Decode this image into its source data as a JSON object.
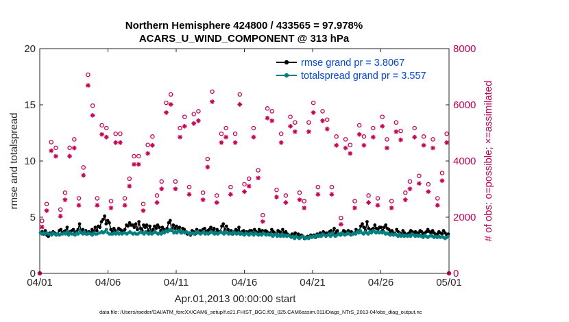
{
  "chart_data": {
    "type": "line",
    "title_line1": "Northern Hemisphere 424800 / 433565 = 97.978%",
    "title_line2": "ACARS_U_WIND_COMPONENT @ 313 hPa",
    "xlabel": "Apr.01,2013 00:00:00 start",
    "ylabel_left": "rmse and totalspread",
    "ylabel_right": "# of obs: o=possible; ×=assimilated",
    "x_tick_labels": [
      "04/01",
      "04/06",
      "04/11",
      "04/16",
      "04/21",
      "04/26",
      "05/01"
    ],
    "x_tick_days": [
      0,
      5,
      10,
      15,
      20,
      25,
      30
    ],
    "xlim_days": [
      0,
      30
    ],
    "ylim_left": [
      0,
      20
    ],
    "yticks_left": [
      0,
      5,
      10,
      15,
      20
    ],
    "ylim_right": [
      0,
      8000
    ],
    "yticks_right": [
      0,
      2000,
      4000,
      6000,
      8000
    ],
    "footnote": "data file: /Users/raeder/DAI/ATM_forcXX/CAM6_setup/f.e21.FHIST_BGC.f09_025.CAM6assim.011/Diags_NTrS_2013-04/obs_diag_output.nc",
    "colors": {
      "rmse": "#000000",
      "totalspread": "#008080",
      "obs": "#cc0052",
      "legend_text": "#0044ee"
    },
    "series": [
      {
        "name": "rmse grand pr = 3.8067",
        "values": [
          3.6,
          3.7,
          3.5,
          3.8,
          3.4,
          3.3,
          3.6,
          3.5,
          3.7,
          3.6,
          3.5,
          3.5,
          3.8,
          3.9,
          3.6,
          3.7,
          3.8,
          4.1,
          3.5,
          3.7,
          3.8,
          3.9,
          3.6,
          3.7,
          3.9,
          4.4,
          3.7,
          3.9,
          3.6,
          3.8,
          3.5,
          3.7,
          3.6,
          3.9,
          3.7,
          4.1,
          3.8,
          4.2,
          4.1,
          4.6,
          4.8,
          5.1,
          4.4,
          4.7,
          4.5,
          3.9,
          3.7,
          4.0,
          3.8,
          3.7,
          4.0,
          3.9,
          3.8,
          3.7,
          3.9,
          4.3,
          4.2,
          4.5,
          4.3,
          4.3,
          4.1,
          4.4,
          3.9,
          4.6,
          4.0,
          3.8,
          4.3,
          4.1,
          4.3,
          3.8,
          4.2,
          3.6,
          3.9,
          4.2,
          4.0,
          4.3,
          4.1,
          3.8,
          4.1,
          3.9,
          3.8,
          4.0,
          4.5,
          4.7,
          3.8,
          4.3,
          4.0,
          4.2,
          3.9,
          4.1,
          3.6,
          4.0,
          3.9,
          3.7,
          3.5,
          3.6,
          3.4,
          3.8,
          3.7,
          3.5,
          3.9,
          3.6,
          3.8,
          3.7,
          3.9,
          4.0,
          3.7,
          3.8,
          3.9,
          4.1,
          3.8,
          4.0,
          3.6,
          3.9,
          3.7,
          3.7,
          4.2,
          4.4,
          3.8,
          4.2,
          3.9,
          3.6,
          3.8,
          3.5,
          3.7,
          3.9,
          3.8,
          4.1,
          3.5,
          3.7,
          3.8,
          3.6,
          3.7,
          3.6,
          3.8,
          3.8,
          3.5,
          3.9,
          3.7,
          3.6,
          3.9,
          3.7,
          3.8,
          3.6,
          3.8,
          3.7,
          3.5,
          3.6,
          3.9,
          3.7,
          3.6,
          3.5,
          3.8,
          3.7,
          3.6,
          3.9,
          3.6,
          3.7,
          3.5,
          3.4,
          3.3,
          3.5,
          3.4,
          3.6,
          3.3,
          3.5,
          3.2,
          3.4,
          3.3,
          3.1,
          3.2,
          3.3,
          3.2,
          3.4,
          3.3,
          3.4,
          3.2,
          3.5,
          3.3,
          3.6,
          3.4,
          3.7,
          3.5,
          3.6,
          3.4,
          3.7,
          3.8,
          3.5,
          4.0,
          3.6,
          3.8,
          3.5,
          3.4,
          3.6,
          3.8,
          3.7,
          3.5,
          3.8,
          3.6,
          3.7,
          3.5,
          3.6,
          3.9,
          3.7,
          3.8,
          4.2,
          4.4,
          4.1,
          3.8,
          4.6,
          4.0,
          3.7,
          3.9,
          4.0,
          4.3,
          4.0,
          3.9,
          4.1,
          4.1,
          3.8,
          4.1,
          4.3,
          4.0,
          3.9,
          3.7,
          3.8,
          3.6,
          3.5,
          3.9,
          3.7,
          3.6,
          3.5,
          3.8,
          3.6,
          3.4,
          3.5,
          3.6,
          3.8,
          3.7,
          3.5,
          3.7,
          3.6,
          3.6,
          3.8,
          3.7,
          3.5,
          3.6,
          3.7,
          3.9,
          3.7,
          3.6,
          3.8,
          3.6,
          3.4,
          3.5,
          3.7,
          3.6,
          3.5,
          3.8,
          3.6,
          3.4,
          3.5
        ]
      },
      {
        "name": "totalspread grand pr = 3.557",
        "values": [
          3.6,
          3.5,
          3.6,
          3.5,
          3.6,
          3.5,
          3.5,
          3.4,
          3.6,
          3.5,
          3.4,
          3.5,
          3.4,
          3.5,
          3.5,
          3.6,
          3.5,
          3.7,
          3.4,
          3.6,
          3.5,
          3.5,
          3.4,
          3.6,
          3.5,
          3.8,
          3.6,
          3.5,
          3.7,
          3.5,
          3.5,
          3.6,
          3.5,
          3.4,
          3.6,
          3.5,
          3.5,
          3.6,
          3.6,
          3.7,
          3.6,
          3.7,
          3.9,
          3.6,
          3.5,
          3.5,
          3.5,
          3.6,
          3.5,
          3.7,
          3.5,
          3.6,
          3.5,
          3.6,
          3.6,
          3.5,
          3.6,
          3.7,
          3.6,
          3.5,
          3.6,
          3.5,
          3.5,
          3.6,
          3.7,
          3.6,
          3.5,
          3.7,
          3.6,
          3.5,
          3.6,
          3.5,
          3.6,
          3.7,
          3.6,
          3.5,
          3.6,
          3.5,
          3.7,
          3.6,
          3.8,
          3.7,
          3.8,
          3.9,
          3.8,
          3.6,
          3.7,
          3.6,
          3.8,
          3.7,
          3.6,
          3.7,
          3.6,
          3.7,
          3.6,
          3.5,
          3.5,
          3.6,
          3.5,
          3.6,
          3.7,
          3.6,
          3.5,
          3.6,
          3.7,
          3.5,
          3.6,
          3.5,
          3.6,
          3.7,
          3.6,
          3.5,
          3.6,
          3.5,
          3.6,
          3.7,
          3.6,
          3.5,
          3.7,
          3.6,
          3.5,
          3.6,
          3.5,
          3.7,
          3.6,
          3.5,
          3.6,
          3.5,
          3.6,
          3.5,
          3.4,
          3.6,
          3.5,
          3.4,
          3.6,
          3.5,
          3.4,
          3.6,
          3.5,
          3.4,
          3.5,
          3.4,
          3.6,
          3.5,
          3.4,
          3.5,
          3.4,
          3.5,
          3.3,
          3.4,
          3.5,
          3.3,
          3.4,
          3.3,
          3.5,
          3.3,
          3.4,
          3.3,
          3.4,
          3.3,
          3.2,
          3.3,
          3.1,
          3.3,
          3.2,
          3.1,
          3.2,
          3.3,
          3.2,
          3.1,
          3.2,
          3.1,
          3.3,
          3.2,
          3.3,
          3.2,
          3.4,
          3.3,
          3.4,
          3.3,
          3.5,
          3.4,
          3.3,
          3.4,
          3.5,
          3.3,
          3.6,
          3.4,
          3.3,
          3.4,
          3.5,
          3.4,
          3.6,
          3.5,
          3.4,
          3.5,
          3.6,
          3.5,
          3.4,
          3.5,
          3.6,
          3.5,
          3.7,
          3.6,
          3.8,
          3.6,
          3.5,
          3.7,
          3.6,
          3.5,
          3.7,
          3.6,
          3.8,
          3.7,
          3.6,
          3.7,
          3.6,
          3.7,
          3.6,
          3.7,
          3.5,
          3.6,
          3.5,
          3.4,
          3.5,
          3.4,
          3.5,
          3.4,
          3.3,
          3.5,
          3.3,
          3.4,
          3.3,
          3.4,
          3.3,
          3.4,
          3.3,
          3.5,
          3.4,
          3.3,
          3.4,
          3.3,
          3.4,
          3.3,
          3.2,
          3.4,
          3.3,
          3.2,
          3.3,
          3.4,
          3.3,
          3.2,
          3.3,
          3.2,
          3.3,
          3.2,
          3.3,
          3.2,
          3.1,
          3.2,
          3.3
        ]
      }
    ],
    "obs_possible": [
      1700,
      2300,
      4500,
      4300,
      2100,
      2700,
      4300,
      4600,
      2500,
      3600,
      6900,
      5800,
      2500,
      5100,
      5000,
      2400,
      4800,
      4800,
      2500,
      3200,
      4000,
      4000,
      2300,
      4400,
      4700,
      2600,
      3100,
      5900,
      6200,
      3100,
      5000,
      5400,
      2900,
      5500,
      5600,
      2700,
      3900,
      6300,
      2600,
      4800,
      5000,
      2900,
      4800,
      6200,
      3000,
      3200,
      5000,
      3500,
      1900,
      5700,
      5600,
      2800,
      4800,
      2600,
      5400,
      5200,
      2700,
      2400,
      5200,
      5900,
      2900,
      5600,
      5300,
      2900,
      4700,
      1800,
      4600,
      4400,
      2400,
      5100,
      4700,
      2600,
      5000,
      2500,
      5400,
      4600,
      2400,
      5200,
      4900,
      2700,
      3100,
      5000,
      3300,
      4700,
      3000,
      4600,
      2500,
      3400,
      4800
    ]
  }
}
